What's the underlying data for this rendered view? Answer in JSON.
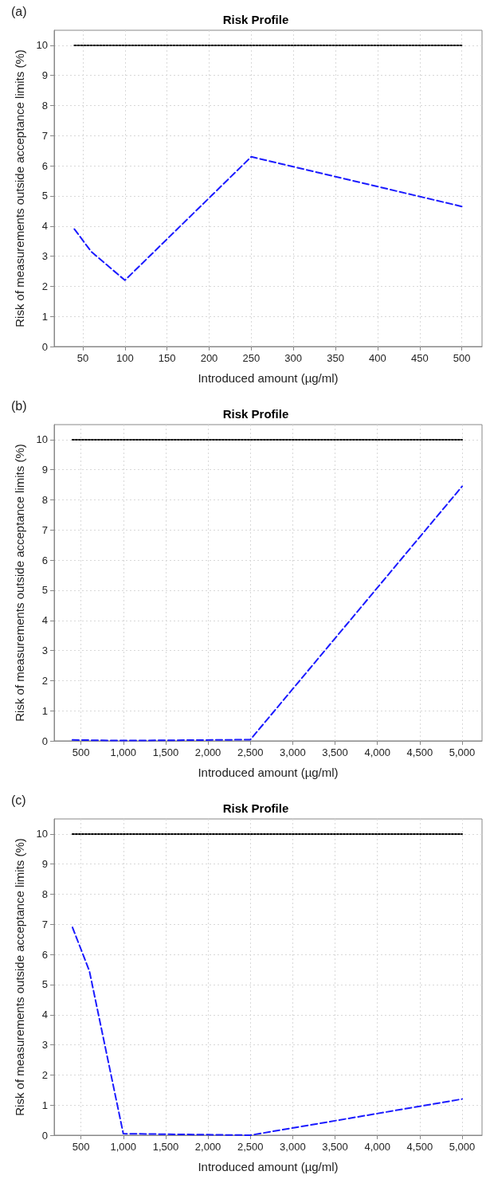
{
  "chart_data": [
    {
      "type": "line",
      "title": "Risk Profile",
      "annotations": [
        "(a)"
      ],
      "xlabel": "Introduced amount (µg/ml)",
      "ylabel": "Risk of measurements outside acceptance limits (%)",
      "xlim": [
        16,
        524
      ],
      "xticks": [
        50,
        100,
        150,
        200,
        250,
        300,
        350,
        400,
        450,
        500
      ],
      "ylim": [
        0,
        10.5
      ],
      "yticks": [
        0,
        1,
        2,
        3,
        4,
        5,
        6,
        7,
        8,
        9,
        10
      ],
      "grid": true,
      "marker": "none",
      "series": [
        {
          "color": "#1a1aff",
          "line_style": "dashed",
          "x": [
            40,
            60,
            100,
            250,
            500
          ],
          "values": [
            3.9,
            3.15,
            2.2,
            6.3,
            4.65
          ]
        },
        {
          "color": "#000000",
          "line_style": "dotted",
          "x": [
            40,
            500
          ],
          "values": [
            10,
            10
          ]
        }
      ]
    },
    {
      "type": "line",
      "title": "Risk Profile",
      "annotations": [
        "(b)"
      ],
      "xlabel": "Introduced amount (µg/ml)",
      "ylabel": "Risk of measurements outside acceptance limits (%)",
      "xlim": [
        184,
        5235
      ],
      "xticks": [
        {
          "value": 500,
          "label": "500"
        },
        {
          "value": 1000,
          "label": "1,000"
        },
        {
          "value": 1500,
          "label": "1,500"
        },
        {
          "value": 2000,
          "label": "2,000"
        },
        {
          "value": 2500,
          "label": "2,500"
        },
        {
          "value": 3000,
          "label": "3,000"
        },
        {
          "value": 3500,
          "label": "3,500"
        },
        {
          "value": 4000,
          "label": "4,000"
        },
        {
          "value": 4500,
          "label": "4,500"
        },
        {
          "value": 5000,
          "label": "5,000"
        }
      ],
      "ylim": [
        0,
        10.5
      ],
      "yticks": [
        0,
        1,
        2,
        3,
        4,
        5,
        6,
        7,
        8,
        9,
        10
      ],
      "grid": true,
      "marker": "none",
      "series": [
        {
          "color": "#1a1aff",
          "line_style": "dashed",
          "x": [
            400,
            1000,
            2500,
            5000
          ],
          "values": [
            0.03,
            0.01,
            0.04,
            8.45
          ]
        },
        {
          "color": "#000000",
          "line_style": "dotted",
          "x": [
            400,
            5000
          ],
          "values": [
            10,
            10
          ]
        }
      ]
    },
    {
      "type": "line",
      "title": "Risk Profile",
      "annotations": [
        "(c)"
      ],
      "xlabel": "Introduced amount (µg/ml)",
      "ylabel": "Risk of measurements outside acceptance limits (%)",
      "xlim": [
        184,
        5235
      ],
      "xticks": [
        {
          "value": 500,
          "label": "500"
        },
        {
          "value": 1000,
          "label": "1,000"
        },
        {
          "value": 1500,
          "label": "1,500"
        },
        {
          "value": 2000,
          "label": "2,000"
        },
        {
          "value": 2500,
          "label": "2,500"
        },
        {
          "value": 3000,
          "label": "3,000"
        },
        {
          "value": 3500,
          "label": "3,500"
        },
        {
          "value": 4000,
          "label": "4,000"
        },
        {
          "value": 4500,
          "label": "4,500"
        },
        {
          "value": 5000,
          "label": "5,000"
        }
      ],
      "ylim": [
        0,
        10.5
      ],
      "yticks": [
        0,
        1,
        2,
        3,
        4,
        5,
        6,
        7,
        8,
        9,
        10
      ],
      "grid": true,
      "marker": "none",
      "series": [
        {
          "color": "#1a1aff",
          "line_style": "dashed",
          "x": [
            400,
            600,
            1000,
            2500,
            5000
          ],
          "values": [
            6.9,
            5.45,
            0.05,
            0,
            1.2
          ]
        },
        {
          "color": "#000000",
          "line_style": "dotted",
          "x": [
            400,
            5000
          ],
          "values": [
            10,
            10
          ]
        }
      ]
    }
  ]
}
